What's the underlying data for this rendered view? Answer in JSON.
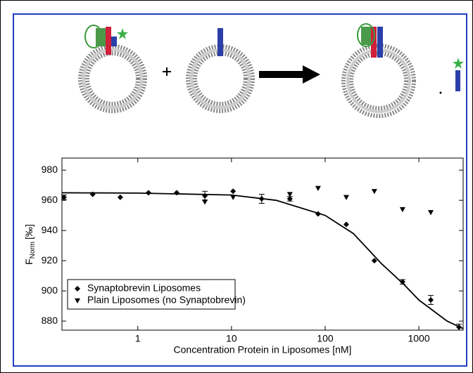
{
  "chart_data": {
    "type": "scatter",
    "xlabel": "Concentration Protein in Liposomes [nM]",
    "ylabel": {
      "main": "F",
      "sub": "Norm",
      "unit": "[‰]"
    },
    "xscale": "log",
    "xlim": [
      0.155,
      2970
    ],
    "ylim": [
      874,
      988
    ],
    "xticks": [
      1,
      10,
      100,
      1000
    ],
    "yticks": [
      880,
      900,
      920,
      940,
      960,
      980
    ],
    "grid": false,
    "legend": "lower left",
    "series": [
      {
        "name": "Synaptobrevin Liposomes",
        "color": "#000000",
        "marker": "diamond",
        "x": [
          0.163,
          0.33,
          0.65,
          1.3,
          2.6,
          5.2,
          10.4,
          21,
          42,
          84,
          168,
          335,
          670,
          1340,
          2680
        ],
        "values": [
          962,
          964,
          962,
          965,
          965,
          963,
          966,
          961,
          961,
          951,
          944,
          920,
          906,
          894,
          876
        ],
        "errors": [
          1.5,
          null,
          null,
          null,
          null,
          3,
          null,
          3,
          1.5,
          null,
          null,
          null,
          1.5,
          3,
          2
        ]
      },
      {
        "name": "Plain Liposomes (no Synaptobrevin)",
        "color": "#000000",
        "marker": "triangle-down",
        "x": [
          5.2,
          10.4,
          42,
          84,
          168,
          335,
          670,
          1340
        ],
        "values": [
          959,
          962,
          964,
          968,
          962,
          966,
          954,
          952
        ]
      }
    ],
    "fit": {
      "color": "#000000",
      "x": [
        0.155,
        1,
        10,
        30,
        100,
        200,
        400,
        700,
        1000,
        2000,
        2970
      ],
      "values": [
        965,
        964.8,
        963.5,
        960,
        950,
        938,
        918,
        904,
        894,
        880,
        875
      ]
    }
  }
}
